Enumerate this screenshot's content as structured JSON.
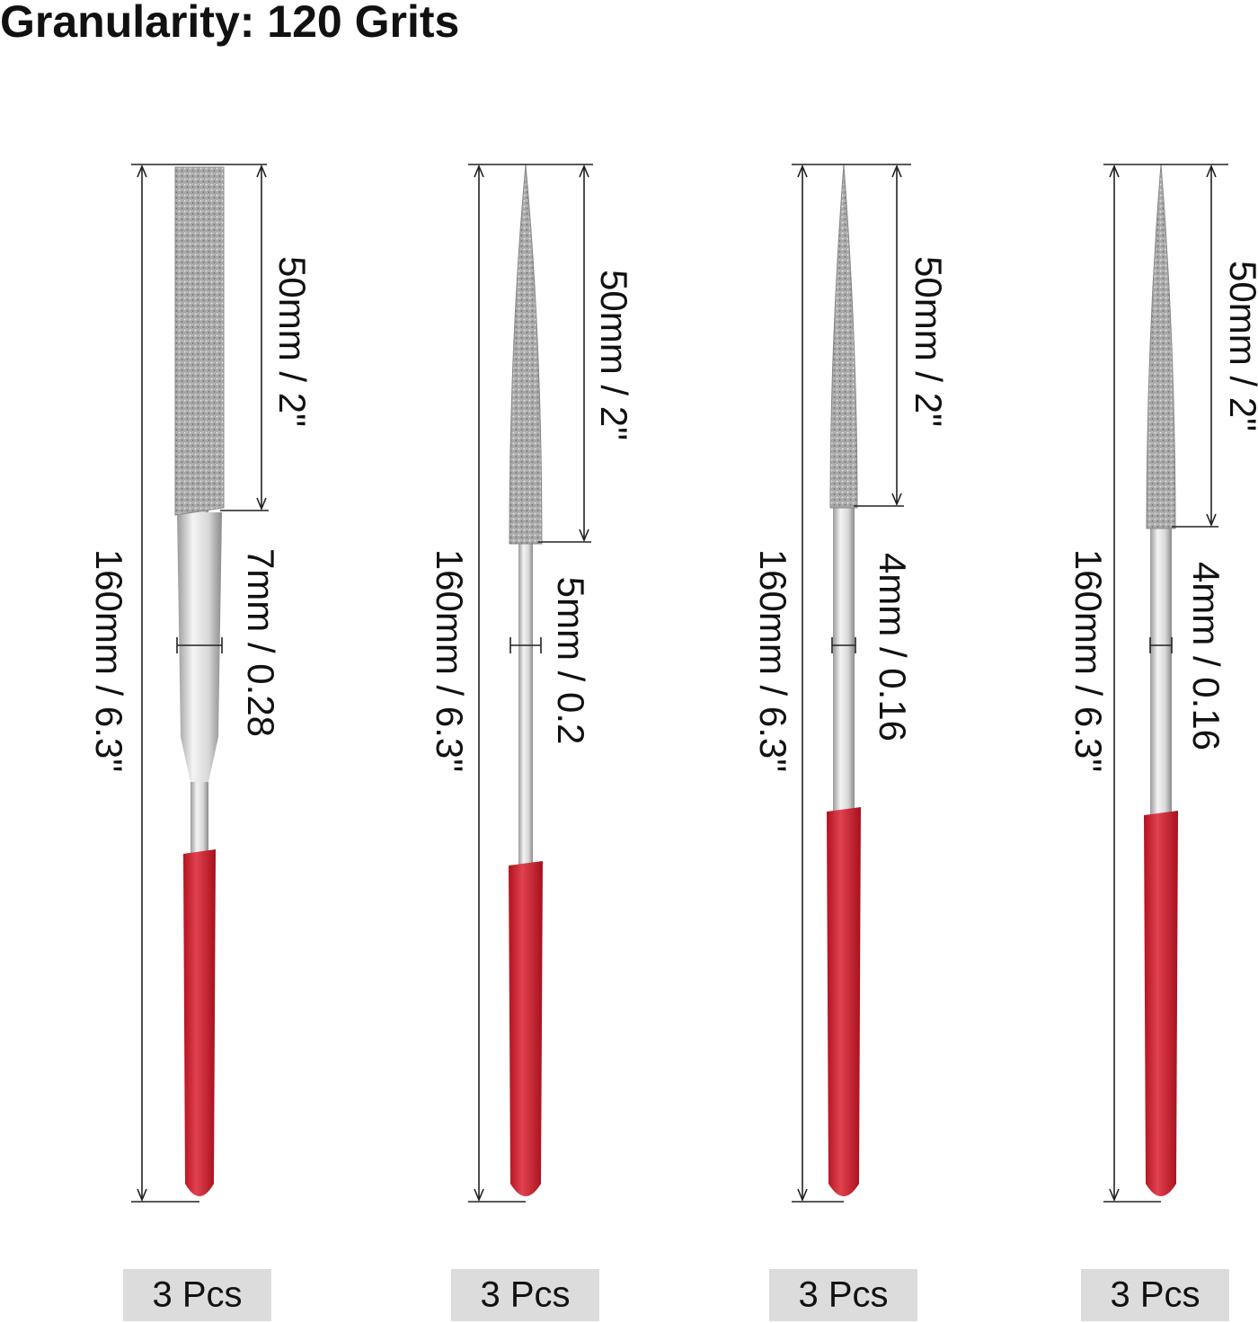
{
  "title": "Granularity: 120 Grits",
  "files": [
    {
      "length": "160mm / 6.3\"",
      "grit_length": "50mm / 2\"",
      "width": "7mm / 0.28",
      "quantity": "3 Pcs"
    },
    {
      "length": "160mm / 6.3\"",
      "grit_length": "50mm / 2\"",
      "width": "5mm / 0.2",
      "quantity": "3 Pcs"
    },
    {
      "length": "160mm / 6.3\"",
      "grit_length": "50mm / 2\"",
      "width": "4mm / 0.16",
      "quantity": "3 Pcs"
    },
    {
      "length": "160mm / 6.3\"",
      "grit_length": "50mm / 2\"",
      "width": "4mm / 0.16",
      "quantity": "3 Pcs"
    }
  ]
}
